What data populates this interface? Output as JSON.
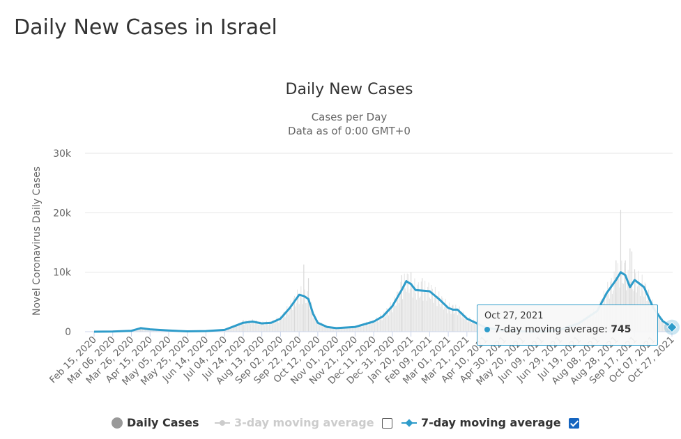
{
  "page_title": "Daily New Cases in Israel",
  "tooltip": {
    "date": "Oct 27, 2021",
    "series": "7-day moving average",
    "value": "745"
  },
  "legend": {
    "daily": "Daily Cases",
    "ma3": "3-day moving average",
    "ma7": "7-day moving average"
  },
  "colors": {
    "line": "#2e9cca",
    "bars": "#e3e3e3",
    "grid": "#e6e6e6",
    "axis_text": "#666666",
    "legend_disabled": "#cccccc"
  },
  "chart_data": {
    "type": "line",
    "title": "Daily New Cases",
    "subtitle": [
      "Cases per Day",
      "Data as of 0:00 GMT+0"
    ],
    "ylabel": "Novel Coronavirus Daily Cases",
    "xlabel": "",
    "ylim": [
      0,
      30000
    ],
    "yticks": [
      0,
      10000,
      20000,
      30000
    ],
    "ytick_labels": [
      "0",
      "10k",
      "20k",
      "30k"
    ],
    "grid": true,
    "legend_position": "bottom",
    "x_start": "Feb 15, 2020",
    "x_end": "Oct 27, 2021",
    "x_tick_labels": [
      "Feb 15, 2020",
      "Mar 06, 2020",
      "Mar 26, 2020",
      "Apr 15, 2020",
      "May 05, 2020",
      "May 25, 2020",
      "Jun 14, 2020",
      "Jul 04, 2020",
      "Jul 24, 2020",
      "Aug 13, 2020",
      "Sep 02, 2020",
      "Sep 22, 2020",
      "Oct 12, 2020",
      "Nov 01, 2020",
      "Nov 21, 2020",
      "Dec 11, 2020",
      "Dec 31, 2020",
      "Jan 20, 2021",
      "Feb 09, 2021",
      "Mar 01, 2021",
      "Mar 21, 2021",
      "Apr 10, 2021",
      "Apr 30, 2021",
      "May 20, 2021",
      "Jun 09, 2021",
      "Jun 29, 2021",
      "Jul 19, 2021",
      "Aug 08, 2021",
      "Aug 28, 2021",
      "Sep 17, 2021",
      "Oct 07, 2021",
      "Oct 27, 2021"
    ],
    "series": [
      {
        "name": "7-day moving average",
        "x": [
          "Feb 15, 2020",
          "Mar 06, 2020",
          "Mar 26, 2020",
          "Apr 05, 2020",
          "Apr 15, 2020",
          "May 05, 2020",
          "May 25, 2020",
          "Jun 14, 2020",
          "Jul 04, 2020",
          "Jul 14, 2020",
          "Jul 24, 2020",
          "Aug 03, 2020",
          "Aug 13, 2020",
          "Aug 23, 2020",
          "Sep 02, 2020",
          "Sep 12, 2020",
          "Sep 22, 2020",
          "Sep 27, 2020",
          "Oct 02, 2020",
          "Oct 07, 2020",
          "Oct 12, 2020",
          "Oct 22, 2020",
          "Nov 01, 2020",
          "Nov 21, 2020",
          "Dec 11, 2020",
          "Dec 21, 2020",
          "Dec 31, 2020",
          "Jan 10, 2021",
          "Jan 15, 2021",
          "Jan 20, 2021",
          "Jan 25, 2021",
          "Feb 09, 2021",
          "Feb 19, 2021",
          "Mar 01, 2021",
          "Mar 06, 2021",
          "Mar 11, 2021",
          "Mar 21, 2021",
          "Apr 10, 2021",
          "Apr 30, 2021",
          "May 20, 2021",
          "Jun 09, 2021",
          "Jun 29, 2021",
          "Jul 19, 2021",
          "Aug 08, 2021",
          "Aug 18, 2021",
          "Aug 28, 2021",
          "Sep 02, 2021",
          "Sep 07, 2021",
          "Sep 12, 2021",
          "Sep 17, 2021",
          "Sep 27, 2021",
          "Oct 07, 2021",
          "Oct 17, 2021",
          "Oct 27, 2021"
        ],
        "y": [
          0,
          20,
          150,
          600,
          400,
          200,
          60,
          100,
          300,
          900,
          1500,
          1700,
          1400,
          1500,
          2200,
          4000,
          6200,
          6000,
          5500,
          3000,
          1500,
          800,
          600,
          800,
          1700,
          2600,
          4300,
          7000,
          8500,
          8000,
          7000,
          6800,
          5500,
          4000,
          3700,
          3700,
          2200,
          700,
          200,
          50,
          20,
          300,
          1400,
          3500,
          6500,
          8700,
          10000,
          9500,
          7500,
          8700,
          7500,
          4000,
          1800,
          745
        ]
      },
      {
        "name": "Daily Cases",
        "x": [
          "Apr 05, 2020",
          "Jul 24, 2020",
          "Sep 17, 2020",
          "Sep 27, 2020",
          "Oct 02, 2020",
          "Jan 10, 2021",
          "Jan 20, 2021",
          "Feb 01, 2021",
          "Mar 06, 2021",
          "Aug 28, 2021",
          "Sep 02, 2021",
          "Sep 07, 2021",
          "Sep 12, 2021",
          "Sep 14, 2021",
          "Sep 17, 2021"
        ],
        "y": [
          800,
          2000,
          5500,
          11300,
          9000,
          9500,
          10000,
          9000,
          4500,
          12000,
          20500,
          12000,
          14000,
          13500,
          10500
        ]
      }
    ]
  }
}
